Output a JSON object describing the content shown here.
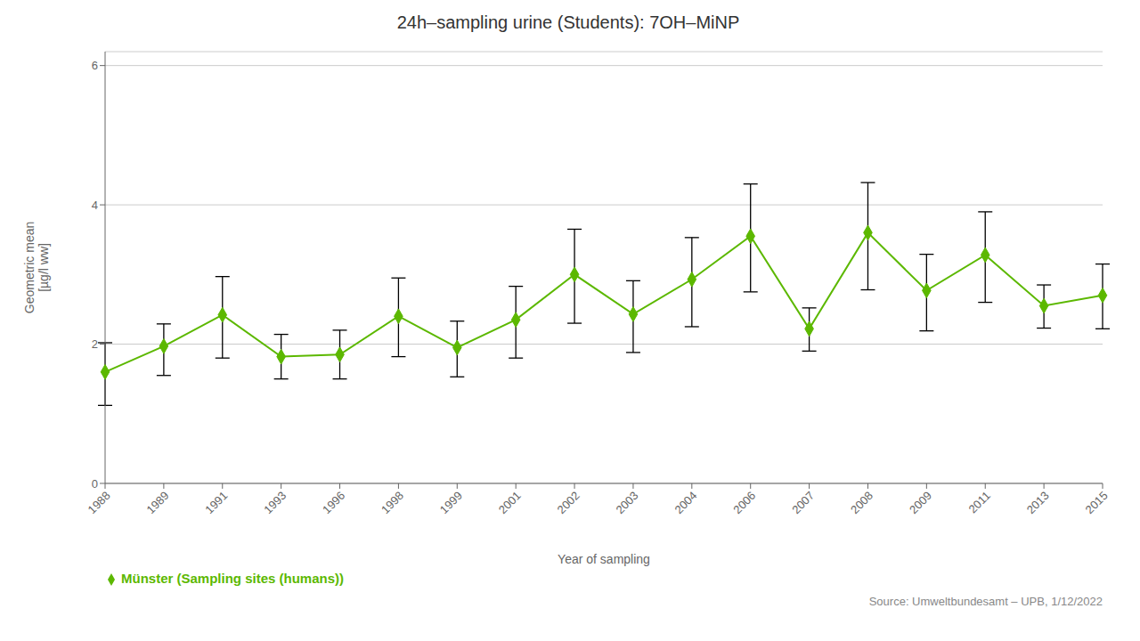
{
  "chart_data": {
    "type": "line",
    "title": "24h–sampling urine (Students): 7OH–MiNP",
    "x_label": "Year of sampling",
    "y_label": "Geometric mean\n[µg/l ww]",
    "annotations": [
      "Source: Umweltbundesamt – UPB, 1/12/2022"
    ],
    "categories": [
      "1988",
      "1989",
      "1991",
      "1993",
      "1996",
      "1998",
      "1999",
      "2001",
      "2002",
      "2003",
      "2004",
      "2006",
      "2007",
      "2008",
      "2009",
      "2011",
      "2013",
      "2015"
    ],
    "series": [
      {
        "name": "Münster (Sampling sites (humans))",
        "color": "#5cb800",
        "marker": "diamond",
        "line_style": "solid",
        "values": [
          1.6,
          1.97,
          2.42,
          1.82,
          1.85,
          2.4,
          1.95,
          2.35,
          3.0,
          2.43,
          2.93,
          3.55,
          2.22,
          3.6,
          2.77,
          3.28,
          2.55,
          2.7
        ],
        "err_low": [
          0.48,
          0.42,
          0.62,
          0.32,
          0.35,
          0.58,
          0.42,
          0.55,
          0.7,
          0.55,
          0.68,
          0.8,
          0.32,
          0.82,
          0.58,
          0.68,
          0.32,
          0.48
        ],
        "err_high": [
          0.42,
          0.32,
          0.55,
          0.32,
          0.35,
          0.55,
          0.38,
          0.48,
          0.65,
          0.48,
          0.6,
          0.75,
          0.3,
          0.72,
          0.52,
          0.62,
          0.3,
          0.45
        ]
      }
    ],
    "ylim": [
      0,
      6.2
    ],
    "yticks": [
      0,
      2,
      4,
      6
    ],
    "grid": true,
    "legend": "bottom"
  }
}
